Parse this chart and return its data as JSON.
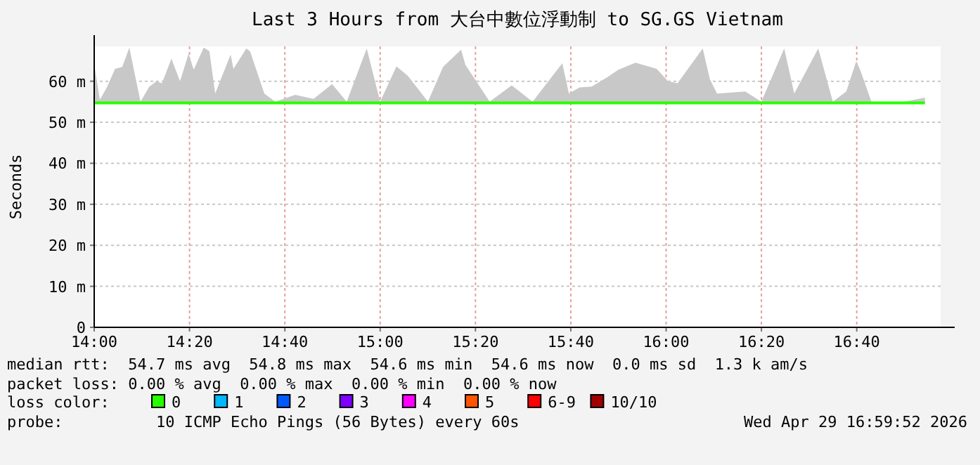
{
  "chart_data": {
    "type": "line",
    "title": "Last 3 Hours from 大台中數位浮動制 to SG.GS Vietnam",
    "ylabel": "Seconds",
    "x": [
      14,
      14.02,
      14.045,
      14.073,
      14.098,
      14.123,
      14.138,
      14.162,
      14.192,
      14.217,
      14.237,
      14.27,
      14.3,
      14.33,
      14.348,
      14.383,
      14.403,
      14.423,
      14.477,
      14.487,
      14.532,
      14.545,
      14.595,
      14.633,
      14.703,
      14.767,
      14.832,
      14.883,
      14.953,
      15,
      15.057,
      15.097,
      15.167,
      15.22,
      15.283,
      15.298,
      15.383,
      15.46,
      15.533,
      15.637,
      15.66,
      15.697,
      15.74,
      15.795,
      15.833,
      15.893,
      15.967,
      16.007,
      16.04,
      16.128,
      16.153,
      16.178,
      16.277,
      16.333,
      16.413,
      16.448,
      16.532,
      16.583,
      16.63,
      16.665,
      16.68,
      16.718,
      16.833,
      16.905
    ],
    "series": [
      {
        "name": "0",
        "color": "#26ff00",
        "values": [
          54.7,
          54.7,
          54.7,
          54.7,
          54.7,
          54.7,
          54.7,
          54.7,
          54.7,
          54.7,
          54.7,
          54.7,
          54.7,
          54.7,
          54.7,
          54.7,
          54.7,
          54.7,
          54.7,
          54.7,
          54.7,
          54.7,
          54.7,
          54.7,
          54.7,
          54.7,
          54.7,
          54.7,
          54.7,
          54.7,
          54.7,
          54.7,
          54.7,
          54.7,
          54.7,
          54.7,
          54.7,
          54.7,
          54.7,
          54.7,
          54.7,
          54.7,
          54.7,
          54.7,
          54.7,
          54.7,
          54.7,
          54.7,
          54.7,
          54.7,
          54.7,
          54.7,
          54.7,
          54.7,
          54.7,
          54.7,
          54.7,
          54.7,
          54.7,
          54.7,
          54.7,
          54.7,
          54.7,
          54.7
        ],
        "lower": [
          54.6,
          54.6,
          54.6,
          54.6,
          54.6,
          54.6,
          54.6,
          54.6,
          54.6,
          54.6,
          54.6,
          54.6,
          54.6,
          54.6,
          54.6,
          54.6,
          54.6,
          54.6,
          54.6,
          54.6,
          54.6,
          54.6,
          54.6,
          54.6,
          54.6,
          54.6,
          54.6,
          54.6,
          54.6,
          54.6,
          54.6,
          54.6,
          54.6,
          54.6,
          54.6,
          54.6,
          54.6,
          54.6,
          54.6,
          54.6,
          54.6,
          54.6,
          54.6,
          54.6,
          54.6,
          54.6,
          54.6,
          54.6,
          54.6,
          54.6,
          54.6,
          54.6,
          54.6,
          54.6,
          54.6,
          54.6,
          54.6,
          54.6,
          54.6,
          54.6,
          54.6,
          54.6,
          54.6,
          54.6
        ],
        "upper": [
          64.1,
          55.5,
          58.6,
          63,
          63.5,
          68.2,
          63,
          55,
          58.6,
          60,
          59.5,
          65.5,
          60,
          66.7,
          62.8,
          68.2,
          67.3,
          57,
          66.5,
          63,
          68,
          67.3,
          57,
          55,
          56.7,
          55.7,
          59.3,
          55,
          68,
          55,
          63.6,
          61.3,
          55,
          63.5,
          67.7,
          64,
          55,
          59,
          55,
          64.4,
          57,
          58.5,
          58.7,
          61,
          62.8,
          64.5,
          63,
          60,
          59.5,
          68,
          60.5,
          57,
          57.5,
          55,
          68,
          57,
          68,
          55,
          57.5,
          64.9,
          62.5,
          55,
          55,
          56
        ]
      },
      {
        "name": "1",
        "color": "#00b8ff",
        "values": [
          null,
          null,
          null,
          null,
          null,
          null,
          null,
          null,
          null,
          null,
          null,
          null,
          null,
          null,
          null,
          null,
          null,
          null,
          null,
          null,
          null,
          null,
          null,
          null,
          null,
          null,
          null,
          null,
          null,
          null,
          null,
          null,
          null,
          null,
          null,
          null,
          null,
          null,
          null,
          null,
          null,
          null,
          null,
          null,
          null,
          null,
          null,
          null,
          null,
          null,
          null,
          null,
          null,
          null,
          null,
          null,
          null,
          null,
          null,
          null,
          null,
          null,
          null,
          null
        ]
      },
      {
        "name": "2",
        "color": "#0059ff",
        "values": [
          null,
          null,
          null,
          null,
          null,
          null,
          null,
          null,
          null,
          null,
          null,
          null,
          null,
          null,
          null,
          null,
          null,
          null,
          null,
          null,
          null,
          null,
          null,
          null,
          null,
          null,
          null,
          null,
          null,
          null,
          null,
          null,
          null,
          null,
          null,
          null,
          null,
          null,
          null,
          null,
          null,
          null,
          null,
          null,
          null,
          null,
          null,
          null,
          null,
          null,
          null,
          null,
          null,
          null,
          null,
          null,
          null,
          null,
          null,
          null,
          null,
          null,
          null,
          null
        ]
      },
      {
        "name": "3",
        "color": "#7e00ff",
        "values": [
          null,
          null,
          null,
          null,
          null,
          null,
          null,
          null,
          null,
          null,
          null,
          null,
          null,
          null,
          null,
          null,
          null,
          null,
          null,
          null,
          null,
          null,
          null,
          null,
          null,
          null,
          null,
          null,
          null,
          null,
          null,
          null,
          null,
          null,
          null,
          null,
          null,
          null,
          null,
          null,
          null,
          null,
          null,
          null,
          null,
          null,
          null,
          null,
          null,
          null,
          null,
          null,
          null,
          null,
          null,
          null,
          null,
          null,
          null,
          null,
          null,
          null,
          null,
          null
        ]
      },
      {
        "name": "4",
        "color": "#ff00ff",
        "values": [
          null,
          null,
          null,
          null,
          null,
          null,
          null,
          null,
          null,
          null,
          null,
          null,
          null,
          null,
          null,
          null,
          null,
          null,
          null,
          null,
          null,
          null,
          null,
          null,
          null,
          null,
          null,
          null,
          null,
          null,
          null,
          null,
          null,
          null,
          null,
          null,
          null,
          null,
          null,
          null,
          null,
          null,
          null,
          null,
          null,
          null,
          null,
          null,
          null,
          null,
          null,
          null,
          null,
          null,
          null,
          null,
          null,
          null,
          null,
          null,
          null,
          null,
          null,
          null
        ]
      },
      {
        "name": "5",
        "color": "#ff5500",
        "values": [
          null,
          null,
          null,
          null,
          null,
          null,
          null,
          null,
          null,
          null,
          null,
          null,
          null,
          null,
          null,
          null,
          null,
          null,
          null,
          null,
          null,
          null,
          null,
          null,
          null,
          null,
          null,
          null,
          null,
          null,
          null,
          null,
          null,
          null,
          null,
          null,
          null,
          null,
          null,
          null,
          null,
          null,
          null,
          null,
          null,
          null,
          null,
          null,
          null,
          null,
          null,
          null,
          null,
          null,
          null,
          null,
          null,
          null,
          null,
          null,
          null,
          null,
          null,
          null
        ]
      },
      {
        "name": "6-9",
        "color": "#ff0000",
        "values": [
          null,
          null,
          null,
          null,
          null,
          null,
          null,
          null,
          null,
          null,
          null,
          null,
          null,
          null,
          null,
          null,
          null,
          null,
          null,
          null,
          null,
          null,
          null,
          null,
          null,
          null,
          null,
          null,
          null,
          null,
          null,
          null,
          null,
          null,
          null,
          null,
          null,
          null,
          null,
          null,
          null,
          null,
          null,
          null,
          null,
          null,
          null,
          null,
          null,
          null,
          null,
          null,
          null,
          null,
          null,
          null,
          null,
          null,
          null,
          null,
          null,
          null,
          null,
          null
        ]
      },
      {
        "name": "10/10",
        "color": "#a10000",
        "values": [
          null,
          null,
          null,
          null,
          null,
          null,
          null,
          null,
          null,
          null,
          null,
          null,
          null,
          null,
          null,
          null,
          null,
          null,
          null,
          null,
          null,
          null,
          null,
          null,
          null,
          null,
          null,
          null,
          null,
          null,
          null,
          null,
          null,
          null,
          null,
          null,
          null,
          null,
          null,
          null,
          null,
          null,
          null,
          null,
          null,
          null,
          null,
          null,
          null,
          null,
          null,
          null,
          null,
          null,
          null,
          null,
          null,
          null,
          null,
          null,
          null,
          null,
          null,
          null
        ]
      }
    ],
    "legend": "bottom",
    "legend_title": "loss color:",
    "grid": true,
    "xlim": [
      14,
      16.96
    ],
    "xticks": [
      {
        "value": 14,
        "label": "14:00"
      },
      {
        "value": 14.3333,
        "label": "14:20"
      },
      {
        "value": 14.6667,
        "label": "14:40"
      },
      {
        "value": 15,
        "label": "15:00"
      },
      {
        "value": 15.3333,
        "label": "15:20"
      },
      {
        "value": 15.6667,
        "label": "15:40"
      },
      {
        "value": 16,
        "label": "16:00"
      },
      {
        "value": 16.3333,
        "label": "16:20"
      },
      {
        "value": 16.6667,
        "label": "16:40"
      }
    ],
    "ylim": [
      0,
      68.5
    ],
    "yticks": [
      0,
      {
        "value": 10,
        "label": "10 m"
      },
      {
        "value": 20,
        "label": "20 m"
      },
      {
        "value": 30,
        "label": "30 m"
      },
      {
        "value": 40,
        "label": "40 m"
      },
      {
        "value": 50,
        "label": "50 m"
      },
      {
        "value": 60,
        "label": "60 m"
      }
    ],
    "annotations": [
      "median rtt:  54.7 ms avg  54.8 ms max  54.6 ms min  54.6 ms now  0.0 ms sd  1.3 k am/s",
      "packet loss: 0.00 % avg  0.00 % max  0.00 % min  0.00 % now",
      "probe:          10 ICMP Echo Pings (56 Bytes) every 60s",
      "Wed Apr 29 16:59:52 2026"
    ]
  }
}
